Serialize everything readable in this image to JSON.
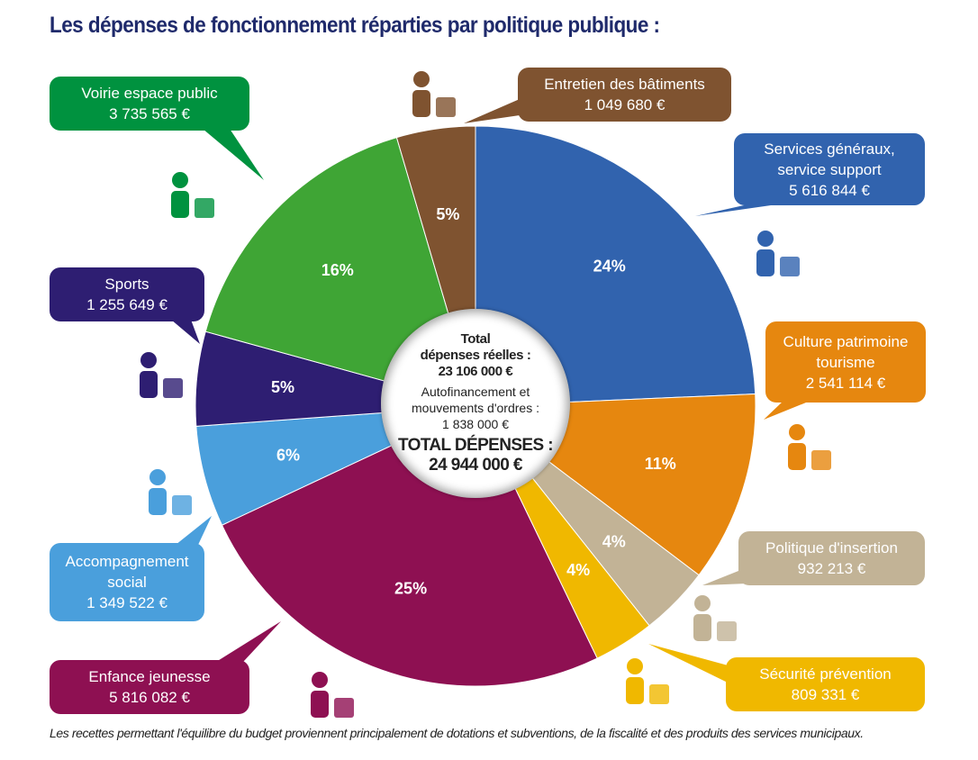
{
  "title": "Les dépenses de fonctionnement réparties par politique publique :",
  "center": {
    "line1": "Total",
    "line2": "dépenses réelles :",
    "line3": "23 106 000 €",
    "line4": "Autofinancement et",
    "line5": "mouvements d'ordres :",
    "line6": "1 838 000 €",
    "line7": "TOTAL DÉPENSES :",
    "line8": "24 944 000 €"
  },
  "footnote": "Les recettes permettant l'équilibre du budget proviennent principalement de dotations et subventions, de la fiscalité  et des produits des services municipaux.",
  "chart_data": {
    "type": "pie",
    "title": "Les dépenses de fonctionnement réparties par politique publique :",
    "start": "top",
    "direction": "clockwise",
    "slices": [
      {
        "name": "Services généraux, service support",
        "label_lines": [
          "Services généraux,",
          "service support"
        ],
        "amount": "5 616 844 €",
        "value": 5616844,
        "percent": "24%",
        "color": "#3163ae",
        "box_color": "#3163ae",
        "icon": "computer-email-icon"
      },
      {
        "name": "Culture patrimoine tourisme",
        "label_lines": [
          "Culture patrimoine",
          "tourisme"
        ],
        "amount": "2 541 114 €",
        "value": 2541114,
        "percent": "11%",
        "color": "#e6870f",
        "box_color": "#e6870f",
        "icon": "crowd-celebration-icon"
      },
      {
        "name": "Politique d'insertion",
        "label_lines": [
          "Politique d'insertion"
        ],
        "amount": "932 213 €",
        "value": 932213,
        "percent": "4%",
        "color": "#c2b396",
        "box_color": "#c2b396",
        "icon": "puzzle-icon"
      },
      {
        "name": "Sécurité prévention",
        "label_lines": [
          "Sécurité prévention"
        ],
        "amount": "809 331 €",
        "value": 809331,
        "percent": "4%",
        "color": "#f0b800",
        "box_color": "#f0b800",
        "icon": "police-officer-icon"
      },
      {
        "name": "Enfance jeunesse",
        "label_lines": [
          "Enfance jeunesse"
        ],
        "amount": "5 816 082 €",
        "value": 5816082,
        "percent": "25%",
        "color": "#8e1052",
        "box_color": "#8e1052",
        "icon": "children-faces-icon"
      },
      {
        "name": "Accompagnement social",
        "label_lines": [
          "Accompagnement",
          "social"
        ],
        "amount": "1 349 522 €",
        "value": 1349522,
        "percent": "6%",
        "color": "#4a9fdc",
        "box_color": "#4a9fdc",
        "icon": "elderly-people-icon"
      },
      {
        "name": "Sports",
        "label_lines": [
          "Sports"
        ],
        "amount": "1 255 649 €",
        "value": 1255649,
        "percent": "5%",
        "color": "#2e1e72",
        "box_color": "#2e1e72",
        "icon": "runner-ball-icon"
      },
      {
        "name": "Voirie espace public",
        "label_lines": [
          "Voirie espace public"
        ],
        "amount": "3 735 565 €",
        "value": 3735565,
        "percent": "16%",
        "color": "#3fa535",
        "box_color": "#00923f",
        "icon": "road-worker-icon"
      },
      {
        "name": "Entretien des bâtiments",
        "label_lines": [
          "Entretien des bâtiments"
        ],
        "amount": "1 049 680 €",
        "value": 1049680,
        "percent": "5%",
        "color": "#7f5330",
        "box_color": "#7f5330",
        "icon": "bricks-trowel-icon"
      }
    ]
  }
}
